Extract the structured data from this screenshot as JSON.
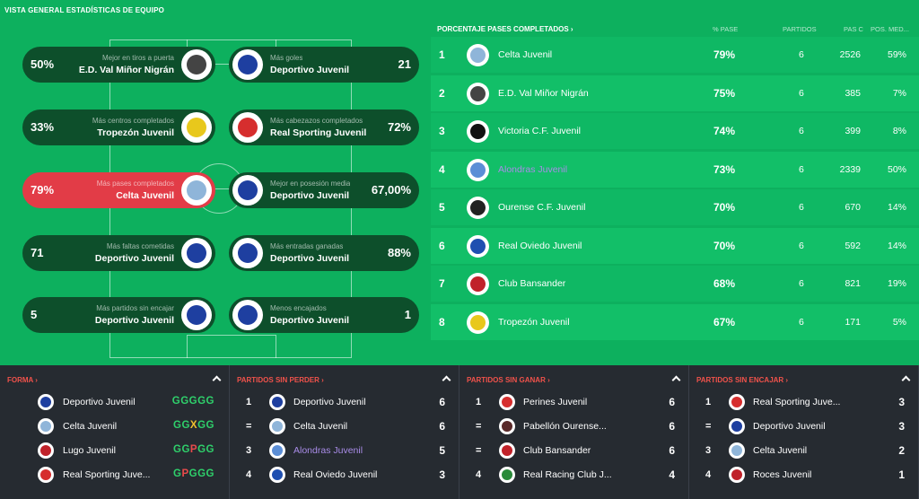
{
  "page_title": "VISTA GENERAL ESTADÍSTICAS DE EQUIPO",
  "colors": {
    "accent_red": "#e23c47",
    "pill_dark": "#0d4f2b",
    "pitch_green": "#0db05e",
    "panel_dark": "#262b31",
    "win": "#2fd06b",
    "draw": "#f2c12e",
    "loss": "#e84b4b"
  },
  "stats": {
    "left": [
      {
        "value": "50%",
        "label": "Mejor en tiros a puerta",
        "team": "E.D. Val Miñor Nigrán",
        "crest": "#444444"
      },
      {
        "value": "33%",
        "label": "Más centros completados",
        "team": "Tropezón Juvenil",
        "crest": "#e8c81c"
      },
      {
        "value": "79%",
        "label": "Más pases completados",
        "team": "Celta Juvenil",
        "crest": "#8fb5d9",
        "highlight": true
      },
      {
        "value": "71",
        "label": "Más faltas cometidas",
        "team": "Deportivo Juvenil",
        "crest": "#1e3fa0"
      },
      {
        "value": "5",
        "label": "Más partidos sin encajar",
        "team": "Deportivo Juvenil",
        "crest": "#1e3fa0"
      }
    ],
    "right": [
      {
        "value": "21",
        "label": "Más goles",
        "team": "Deportivo Juvenil",
        "crest": "#1e3fa0"
      },
      {
        "value": "72%",
        "label": "Más cabezazos completados",
        "team": "Real Sporting Juvenil",
        "crest": "#d62e2e"
      },
      {
        "value": "67,00%",
        "label": "Mejor en posesión media",
        "team": "Deportivo Juvenil",
        "crest": "#1e3fa0"
      },
      {
        "value": "88%",
        "label": "Más entradas ganadas",
        "team": "Deportivo Juvenil",
        "crest": "#1e3fa0"
      },
      {
        "value": "1",
        "label": "Menos encajados",
        "team": "Deportivo Juvenil",
        "crest": "#1e3fa0"
      }
    ]
  },
  "table": {
    "title": "PORCENTAJE PASES COMPLETADOS",
    "columns": [
      "% PASE",
      "PARTIDOS",
      "PAS C",
      "POS. MED..."
    ],
    "rows": [
      {
        "rank": "1",
        "team": "Celta Juvenil",
        "pct": "79%",
        "played": "6",
        "passes": "2526",
        "pos": "59%",
        "crest": "#8fb5d9"
      },
      {
        "rank": "2",
        "team": "E.D. Val Miñor Nigrán",
        "pct": "75%",
        "played": "6",
        "passes": "385",
        "pos": "7%",
        "crest": "#444444"
      },
      {
        "rank": "3",
        "team": "Victoria C.F. Juvenil",
        "pct": "74%",
        "played": "6",
        "passes": "399",
        "pos": "8%",
        "crest": "#111111"
      },
      {
        "rank": "4",
        "team": "Alondras Juvenil",
        "pct": "73%",
        "played": "6",
        "passes": "2339",
        "pos": "50%",
        "crest": "#5b8ed6",
        "link": true
      },
      {
        "rank": "5",
        "team": "Ourense C.F. Juvenil",
        "pct": "70%",
        "played": "6",
        "passes": "670",
        "pos": "14%",
        "crest": "#222222"
      },
      {
        "rank": "6",
        "team": "Real Oviedo Juvenil",
        "pct": "70%",
        "played": "6",
        "passes": "592",
        "pos": "14%",
        "crest": "#1f4fb0"
      },
      {
        "rank": "7",
        "team": "Club Bansander",
        "pct": "68%",
        "played": "6",
        "passes": "821",
        "pos": "19%",
        "crest": "#c0222a"
      },
      {
        "rank": "8",
        "team": "Tropezón Juvenil",
        "pct": "67%",
        "played": "6",
        "passes": "171",
        "pos": "5%",
        "crest": "#e8c81c"
      }
    ]
  },
  "panels": [
    {
      "title": "FORMA",
      "rows": [
        {
          "team": "Deportivo Juvenil",
          "form": "GGGGG",
          "crest": "#1e3fa0"
        },
        {
          "team": "Celta Juvenil",
          "form": "GGXGG",
          "crest": "#8fb5d9"
        },
        {
          "team": "Lugo Juvenil",
          "form": "GGPGG",
          "crest": "#c0222a"
        },
        {
          "team": "Real Sporting Juve...",
          "form": "GPGGG",
          "crest": "#d62e2e"
        }
      ]
    },
    {
      "title": "PARTIDOS SIN PERDER",
      "rows": [
        {
          "num": "1",
          "team": "Deportivo Juvenil",
          "value": "6",
          "crest": "#1e3fa0"
        },
        {
          "num": "=",
          "team": "Celta Juvenil",
          "value": "6",
          "crest": "#8fb5d9"
        },
        {
          "num": "3",
          "team": "Alondras Juvenil",
          "value": "5",
          "crest": "#5b8ed6",
          "link": true
        },
        {
          "num": "4",
          "team": "Real Oviedo Juvenil",
          "value": "3",
          "crest": "#1f4fb0"
        }
      ]
    },
    {
      "title": "PARTIDOS SIN GANAR",
      "rows": [
        {
          "num": "1",
          "team": "Perines Juvenil",
          "value": "6",
          "crest": "#d62e2e"
        },
        {
          "num": "=",
          "team": "Pabellón Ourense...",
          "value": "6",
          "crest": "#5a2a2a"
        },
        {
          "num": "=",
          "team": "Club Bansander",
          "value": "6",
          "crest": "#c0222a"
        },
        {
          "num": "4",
          "team": "Real Racing Club J...",
          "value": "4",
          "crest": "#2a8a3a"
        }
      ]
    },
    {
      "title": "PARTIDOS SIN ENCAJAR",
      "rows": [
        {
          "num": "1",
          "team": "Real Sporting Juve...",
          "value": "3",
          "crest": "#d62e2e"
        },
        {
          "num": "=",
          "team": "Deportivo Juvenil",
          "value": "3",
          "crest": "#1e3fa0"
        },
        {
          "num": "3",
          "team": "Celta Juvenil",
          "value": "2",
          "crest": "#8fb5d9"
        },
        {
          "num": "4",
          "team": "Roces Juvenil",
          "value": "1",
          "crest": "#c0222a"
        }
      ]
    }
  ]
}
